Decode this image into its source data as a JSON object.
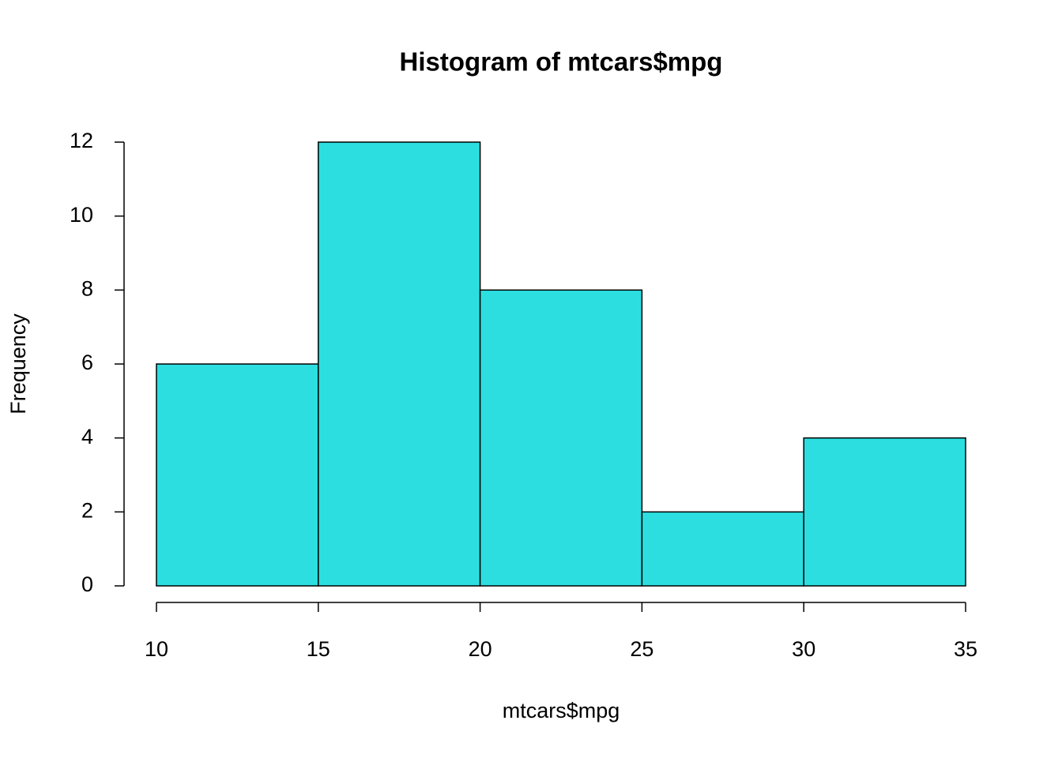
{
  "chart_data": {
    "type": "histogram",
    "title": "Histogram of mtcars$mpg",
    "x_label": "mtcars$mpg",
    "y_label": "Frequency",
    "bins": [
      10,
      15,
      20,
      25,
      30,
      35
    ],
    "values": [
      6,
      12,
      8,
      2,
      4
    ],
    "color": "#2cdee0",
    "edge_color": "#000000",
    "xlim": [
      10,
      35
    ],
    "xticks": [
      10,
      15,
      20,
      25,
      30,
      35
    ],
    "ylim": [
      0,
      12
    ],
    "yticks": [
      0,
      2,
      4,
      6,
      8,
      10,
      12
    ],
    "grid": false
  }
}
